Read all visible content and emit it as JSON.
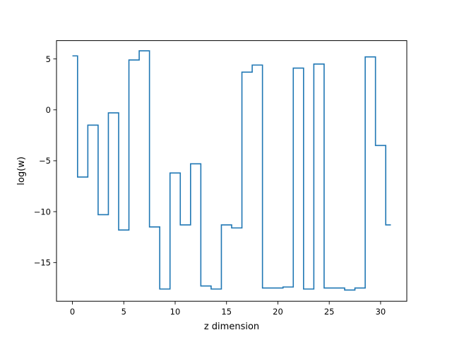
{
  "chart_data": {
    "type": "line",
    "drawstyle": "steps-mid",
    "title": "",
    "xlabel": "z dimension",
    "ylabel": "log(w)",
    "xlim": [
      -1.55,
      32.55
    ],
    "ylim": [
      -18.8,
      6.8
    ],
    "xticks": [
      0,
      5,
      10,
      15,
      20,
      25,
      30
    ],
    "xtick_labels": [
      "0",
      "5",
      "10",
      "15",
      "20",
      "25",
      "30"
    ],
    "yticks": [
      5,
      0,
      -5,
      -10,
      -15
    ],
    "ytick_labels": [
      "5",
      "0",
      "−5",
      "−10",
      "−15"
    ],
    "grid": false,
    "legend": "none",
    "series": [
      {
        "x": [
          0,
          1,
          2,
          3,
          4,
          5,
          6,
          7,
          8,
          9,
          10,
          11,
          12,
          13,
          14,
          15,
          16,
          17,
          18,
          19,
          20,
          21,
          22,
          23,
          24,
          25,
          26,
          27,
          28,
          29,
          30,
          31
        ],
        "values": [
          5.3,
          -6.6,
          -1.5,
          -10.3,
          -0.3,
          -11.8,
          4.9,
          5.8,
          -11.5,
          -17.6,
          -6.2,
          -11.3,
          -5.3,
          -17.3,
          -17.6,
          -11.3,
          -11.6,
          3.7,
          4.4,
          -17.5,
          -17.5,
          -17.4,
          4.1,
          -17.6,
          4.5,
          -17.5,
          -17.5,
          -17.7,
          -17.5,
          5.2,
          -3.5,
          -11.3
        ],
        "color": "#1f77b4"
      }
    ]
  }
}
